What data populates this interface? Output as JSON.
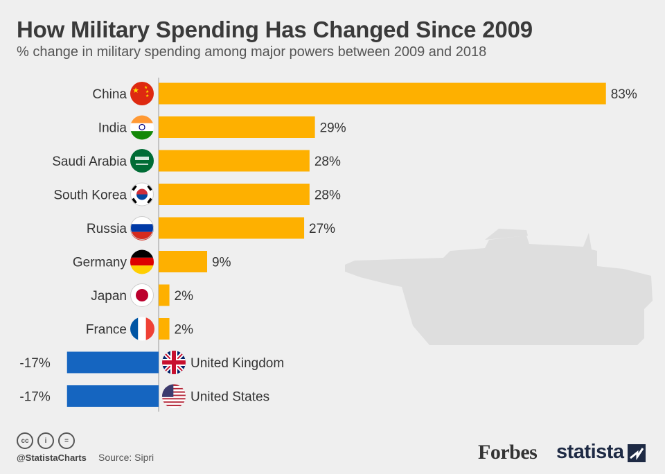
{
  "header": {
    "title": "How Military Spending Has Changed Since 2009",
    "subtitle": "% change in military spending among major powers between 2009 and 2018"
  },
  "colors": {
    "positive": "#FEB000",
    "negative": "#1565C0",
    "background": "#EFEFEF",
    "axis": "#999999"
  },
  "chart_data": {
    "type": "bar",
    "orientation": "horizontal",
    "unit": "%",
    "grid": false,
    "categories": [
      "China",
      "India",
      "Saudi Arabia",
      "South Korea",
      "Russia",
      "Germany",
      "Japan",
      "France",
      "United Kingdom",
      "United States"
    ],
    "values": [
      83,
      29,
      28,
      28,
      27,
      9,
      2,
      2,
      -17,
      -17
    ],
    "data_labels": [
      "83%",
      "29%",
      "28%",
      "28%",
      "27%",
      "9%",
      "2%",
      "2%",
      "-17%",
      "-17%"
    ],
    "flags": [
      "china-flag-icon",
      "india-flag-icon",
      "saudi-arabia-flag-icon",
      "south-korea-flag-icon",
      "russia-flag-icon",
      "germany-flag-icon",
      "japan-flag-icon",
      "france-flag-icon",
      "united-kingdom-flag-icon",
      "united-states-flag-icon"
    ],
    "xlim": [
      -17,
      83
    ]
  },
  "decoration": {
    "background_icon": "tank-silhouette-icon"
  },
  "footer": {
    "license_icons": [
      "cc-icon",
      "attribution-icon",
      "no-derivatives-icon"
    ],
    "license_glyphs": [
      "cc",
      "i",
      "="
    ],
    "handle": "@StatistaCharts",
    "source": "Source: Sipri",
    "partner_logo": "Forbes",
    "brand_logo": "statista"
  }
}
